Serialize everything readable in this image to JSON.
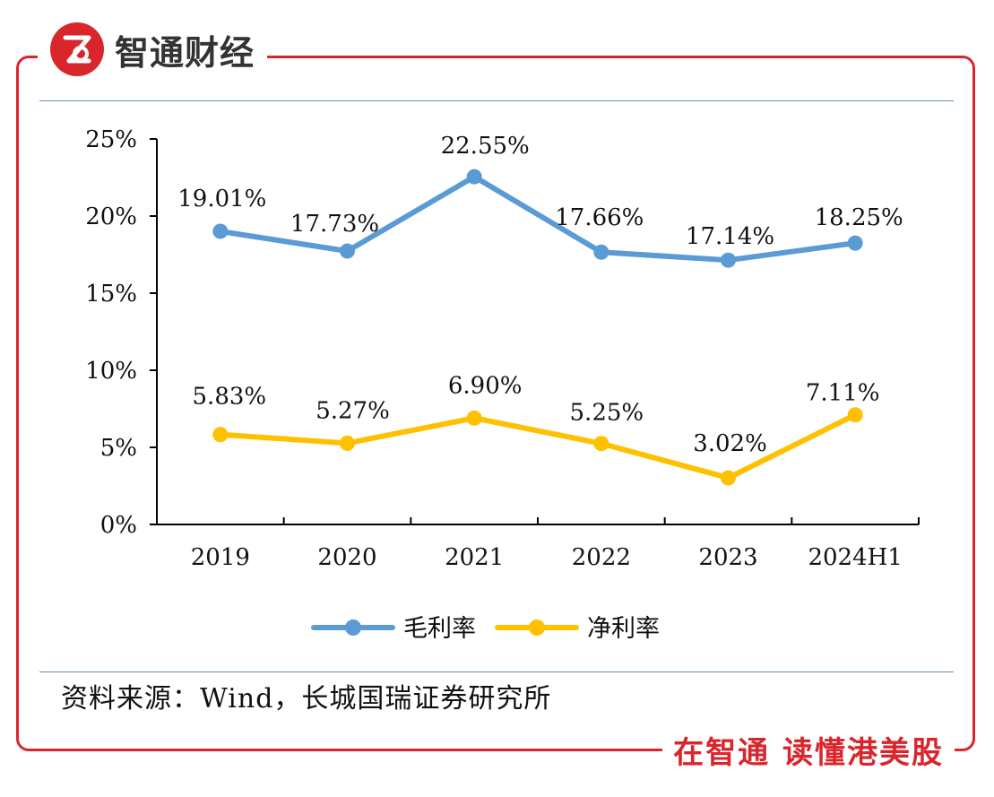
{
  "brand": {
    "name": "智通财经",
    "logo_mark": "Z"
  },
  "slogan": "在智通 读懂港美股",
  "source_note": "资料来源：Wind，长城国瑞证券研究所",
  "colors": {
    "accent": "#d9262c",
    "gross": "#5b9bd5",
    "net": "#ffc000"
  },
  "chart_data": {
    "type": "line",
    "categories": [
      "2019",
      "2020",
      "2021",
      "2022",
      "2023",
      "2024H1"
    ],
    "series": [
      {
        "name": "毛利率",
        "values": [
          19.01,
          17.73,
          22.55,
          17.66,
          17.14,
          18.25
        ],
        "labels": [
          "19.01%",
          "17.73%",
          "22.55%",
          "17.66%",
          "17.14%",
          "18.25%"
        ],
        "color": "#5b9bd5"
      },
      {
        "name": "净利率",
        "values": [
          5.83,
          5.27,
          6.9,
          5.25,
          3.02,
          7.11
        ],
        "labels": [
          "5.83%",
          "5.27%",
          "6.90%",
          "5.25%",
          "3.02%",
          "7.11%"
        ],
        "color": "#ffc000"
      }
    ],
    "ylim": [
      0,
      25
    ],
    "yticks": [
      0,
      5,
      10,
      15,
      20,
      25
    ],
    "ytick_labels": [
      "0%",
      "5%",
      "10%",
      "15%",
      "20%",
      "25%"
    ],
    "title": "",
    "xlabel": "",
    "ylabel": "",
    "legend": "bottom"
  }
}
